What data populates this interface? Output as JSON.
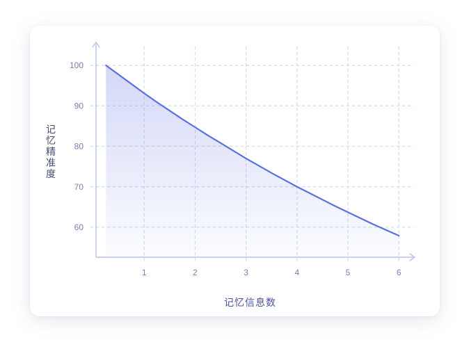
{
  "chart_data": {
    "type": "area",
    "title": "",
    "xlabel": "记忆信息数",
    "ylabel": "记忆精准度",
    "x_ticks": [
      "1",
      "2",
      "3",
      "4",
      "5",
      "6"
    ],
    "x_tick_values": [
      1,
      2,
      3,
      4,
      5,
      6
    ],
    "y_ticks": [
      "100",
      "90",
      "80",
      "70",
      "60"
    ],
    "y_tick_values": [
      100,
      90,
      80,
      70,
      60
    ],
    "xlim": [
      0,
      6.3
    ],
    "ylim_shown": [
      55,
      105
    ],
    "grid": "dashed-both-axes",
    "legend": "none",
    "axis_style": "arrow-tipped light blue axes",
    "series": [
      {
        "name": "记忆精准度",
        "x": [
          0.25,
          0.5,
          0.75,
          1,
          1.25,
          1.5,
          1.75,
          2,
          2.25,
          2.5,
          2.75,
          3,
          3.25,
          3.5,
          3.75,
          4,
          4.25,
          4.5,
          4.75,
          5,
          5.25,
          5.5,
          5.75,
          6
        ],
        "y": [
          100,
          97.7,
          95.4,
          93.1,
          90.9,
          88.8,
          86.7,
          84.7,
          82.7,
          80.8,
          78.9,
          77,
          75.2,
          73.4,
          71.7,
          70,
          68.4,
          66.8,
          65.2,
          63.7,
          62.2,
          60.7,
          59.3,
          57.9
        ]
      }
    ],
    "colors": {
      "line": "#5b6fde",
      "fill_top": "#6373e2",
      "fill_top_opacity": 0.28,
      "fill_bottom_opacity": 0.02,
      "grid": "#cfdcf4",
      "axis": "#b5c4ea",
      "tick_text": "#7583ae",
      "y_title_text": "#474c6e",
      "x_title_text": "#4b539f"
    }
  }
}
